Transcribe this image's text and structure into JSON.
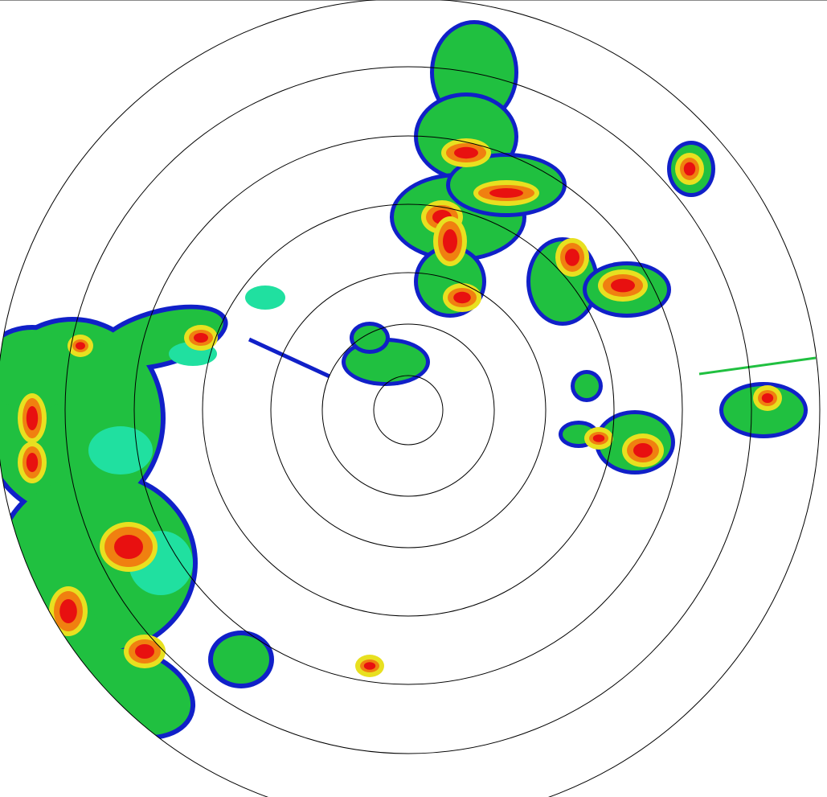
{
  "display": {
    "type": "radar-ppi",
    "range_ring_count": 7,
    "ring_color": "#000000",
    "background": "#ffffff"
  },
  "colors": {
    "weak": "#1020c8",
    "light": "#20e0a0",
    "moderate": "#20c040",
    "heavy": "#e8e020",
    "intense": "#f08010",
    "extreme": "#e81010"
  }
}
